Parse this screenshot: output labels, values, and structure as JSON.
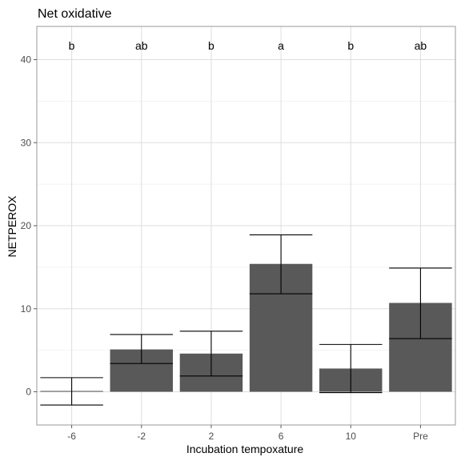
{
  "chart_data": {
    "type": "bar",
    "title": "Net oxidative",
    "xlabel": "Incubation tempoxature",
    "ylabel": "NETPEROX",
    "categories": [
      "-6",
      "-2",
      "2",
      "6",
      "10",
      "Pre"
    ],
    "values": [
      0.1,
      5.1,
      4.6,
      15.4,
      2.8,
      10.7
    ],
    "error_low": [
      -1.6,
      3.4,
      1.9,
      11.8,
      -0.1,
      6.4
    ],
    "error_high": [
      1.7,
      6.9,
      7.3,
      18.9,
      5.7,
      14.9
    ],
    "significance_letters": [
      "b",
      "ab",
      "b",
      "a",
      "b",
      "ab"
    ],
    "ylim": [
      -4,
      44
    ],
    "yticks": [
      0,
      10,
      20,
      30,
      40
    ],
    "bar_color": "#595959",
    "grid": true,
    "theme": "light"
  }
}
